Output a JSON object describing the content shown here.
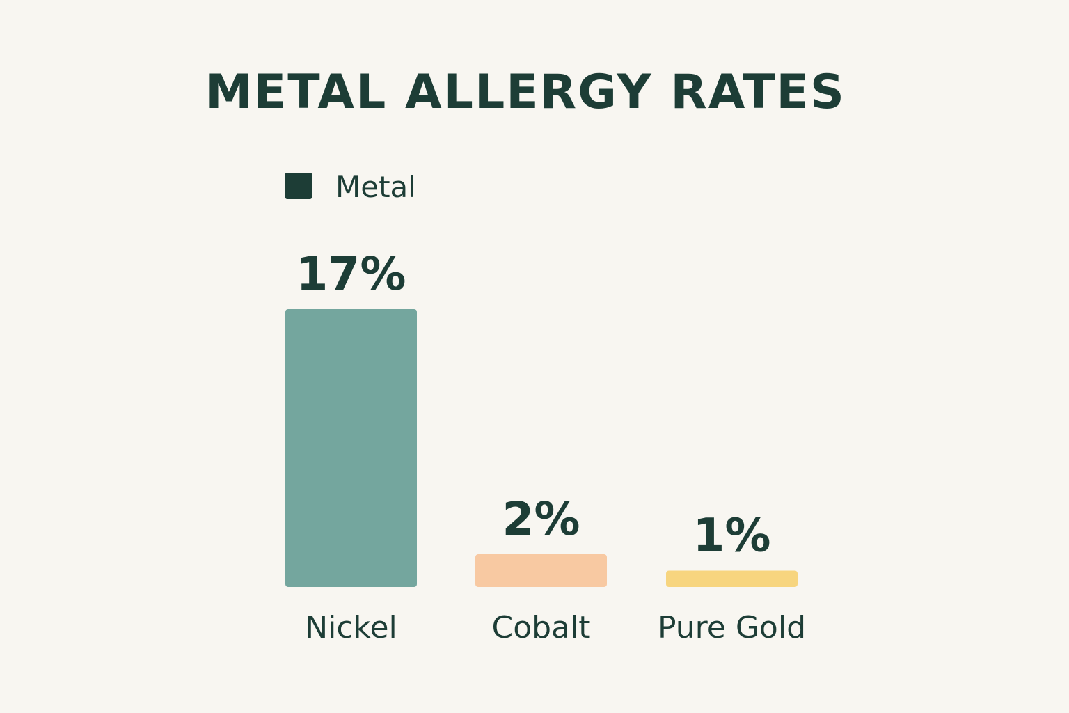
{
  "chart_data": {
    "type": "bar",
    "title": "METAL ALLERGY RATES",
    "legend": {
      "label": "Metal",
      "color": "#1d3d36",
      "position": "top-left"
    },
    "categories": [
      "Nickel",
      "Cobalt",
      "Pure Gold"
    ],
    "values": [
      17,
      2,
      1
    ],
    "value_labels": [
      "17%",
      "2%",
      "1%"
    ],
    "unit": "%",
    "colors": [
      "#74a69e",
      "#f8c9a2",
      "#f7d57f"
    ],
    "ylim": [
      0,
      17
    ],
    "xlabel": "",
    "ylabel": "",
    "grid": false
  }
}
